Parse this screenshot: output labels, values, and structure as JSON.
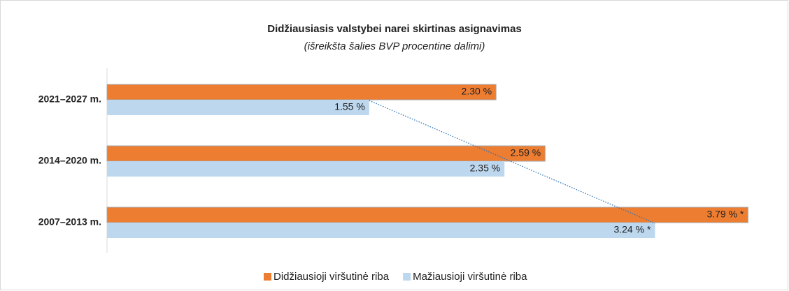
{
  "chart_data": {
    "type": "bar",
    "orientation": "horizontal",
    "title": "Didžiausiasis valstybei narei skirtinas asignavimas",
    "subtitle": "(išreikšta šalies BVP procentine dalimi)",
    "categories": [
      "2021–2027 m.",
      "2014–2020 m.",
      "2007–2013 m."
    ],
    "series": [
      {
        "name": "Didžiausioji viršutinė riba",
        "color": "#ed7d31",
        "values": [
          2.3,
          2.59,
          3.79
        ],
        "value_labels": [
          "2.30 %",
          "2.59 %",
          "3.79 % *"
        ]
      },
      {
        "name": "Mažiausioji viršutinė riba",
        "color": "#bdd7ee",
        "values": [
          1.55,
          2.35,
          3.24
        ],
        "value_labels": [
          "1.55 %",
          "2.35 %",
          "3.24 % *"
        ]
      }
    ],
    "xlim": [
      0,
      3.9
    ],
    "legend": "bottom"
  }
}
